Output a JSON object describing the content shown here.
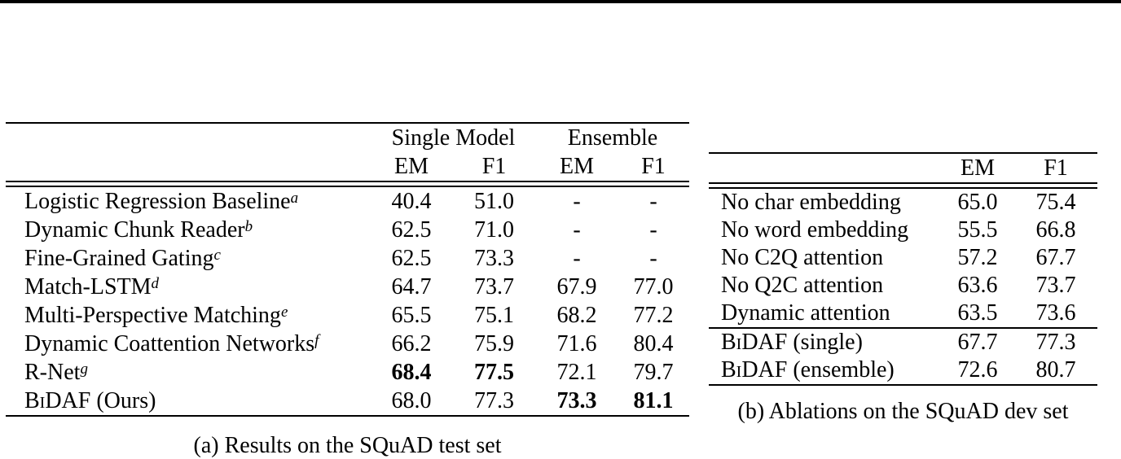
{
  "colors": {
    "text": "#000000",
    "background": "#ffffff",
    "rule": "#000000"
  },
  "table_a": {
    "column_groups": [
      "Single Model",
      "Ensemble"
    ],
    "columns": [
      "EM",
      "F1",
      "EM",
      "F1"
    ],
    "rows": [
      {
        "sc": "",
        "name": "Logistic Regression Baseline",
        "sup": "a",
        "sm_em": "40.4",
        "sm_f1": "51.0",
        "en_em": "-",
        "en_f1": "-"
      },
      {
        "sc": "",
        "name": "Dynamic Chunk Reader",
        "sup": "b",
        "sm_em": "62.5",
        "sm_f1": "71.0",
        "en_em": "-",
        "en_f1": "-"
      },
      {
        "sc": "",
        "name": "Fine-Grained Gating",
        "sup": "c",
        "sm_em": "62.5",
        "sm_f1": "73.3",
        "en_em": "-",
        "en_f1": "-"
      },
      {
        "sc": "",
        "name": "Match-LSTM",
        "sup": "d",
        "sm_em": "64.7",
        "sm_f1": "73.7",
        "en_em": "67.9",
        "en_f1": "77.0"
      },
      {
        "sc": "",
        "name": "Multi-Perspective Matching",
        "sup": "e",
        "sm_em": "65.5",
        "sm_f1": "75.1",
        "en_em": "68.2",
        "en_f1": "77.2"
      },
      {
        "sc": "",
        "name": "Dynamic Coattention Networks",
        "sup": "f",
        "sm_em": "66.2",
        "sm_f1": "75.9",
        "en_em": "71.6",
        "en_f1": "80.4"
      },
      {
        "sc": "",
        "name": "R-Net",
        "sup": "g",
        "sm_em": "68.4",
        "sm_f1": "77.5",
        "en_em": "72.1",
        "en_f1": "79.7"
      },
      {
        "sc": "BiDAF",
        "name": " (Ours)",
        "sup": "",
        "sm_em": "68.0",
        "sm_f1": "77.3",
        "en_em": "73.3",
        "en_f1": "81.1"
      }
    ],
    "caption": "(a) Results on the SQuAD test set"
  },
  "table_b": {
    "columns": [
      "EM",
      "F1"
    ],
    "rows": [
      {
        "sc": "",
        "name": "No char embedding",
        "em": "65.0",
        "f1": "75.4"
      },
      {
        "sc": "",
        "name": "No word embedding",
        "em": "55.5",
        "f1": "66.8"
      },
      {
        "sc": "",
        "name": "No C2Q attention",
        "em": "57.2",
        "f1": "67.7"
      },
      {
        "sc": "",
        "name": "No Q2C attention",
        "em": "63.6",
        "f1": "73.7"
      },
      {
        "sc": "",
        "name": "Dynamic attention",
        "em": "63.5",
        "f1": "73.6"
      },
      {
        "sc": "BiDAF",
        "name": " (single)",
        "em": "67.7",
        "f1": "77.3"
      },
      {
        "sc": "BiDAF",
        "name": " (ensemble)",
        "em": "72.6",
        "f1": "80.7"
      }
    ],
    "caption": "(b) Ablations on the SQuAD dev set"
  }
}
